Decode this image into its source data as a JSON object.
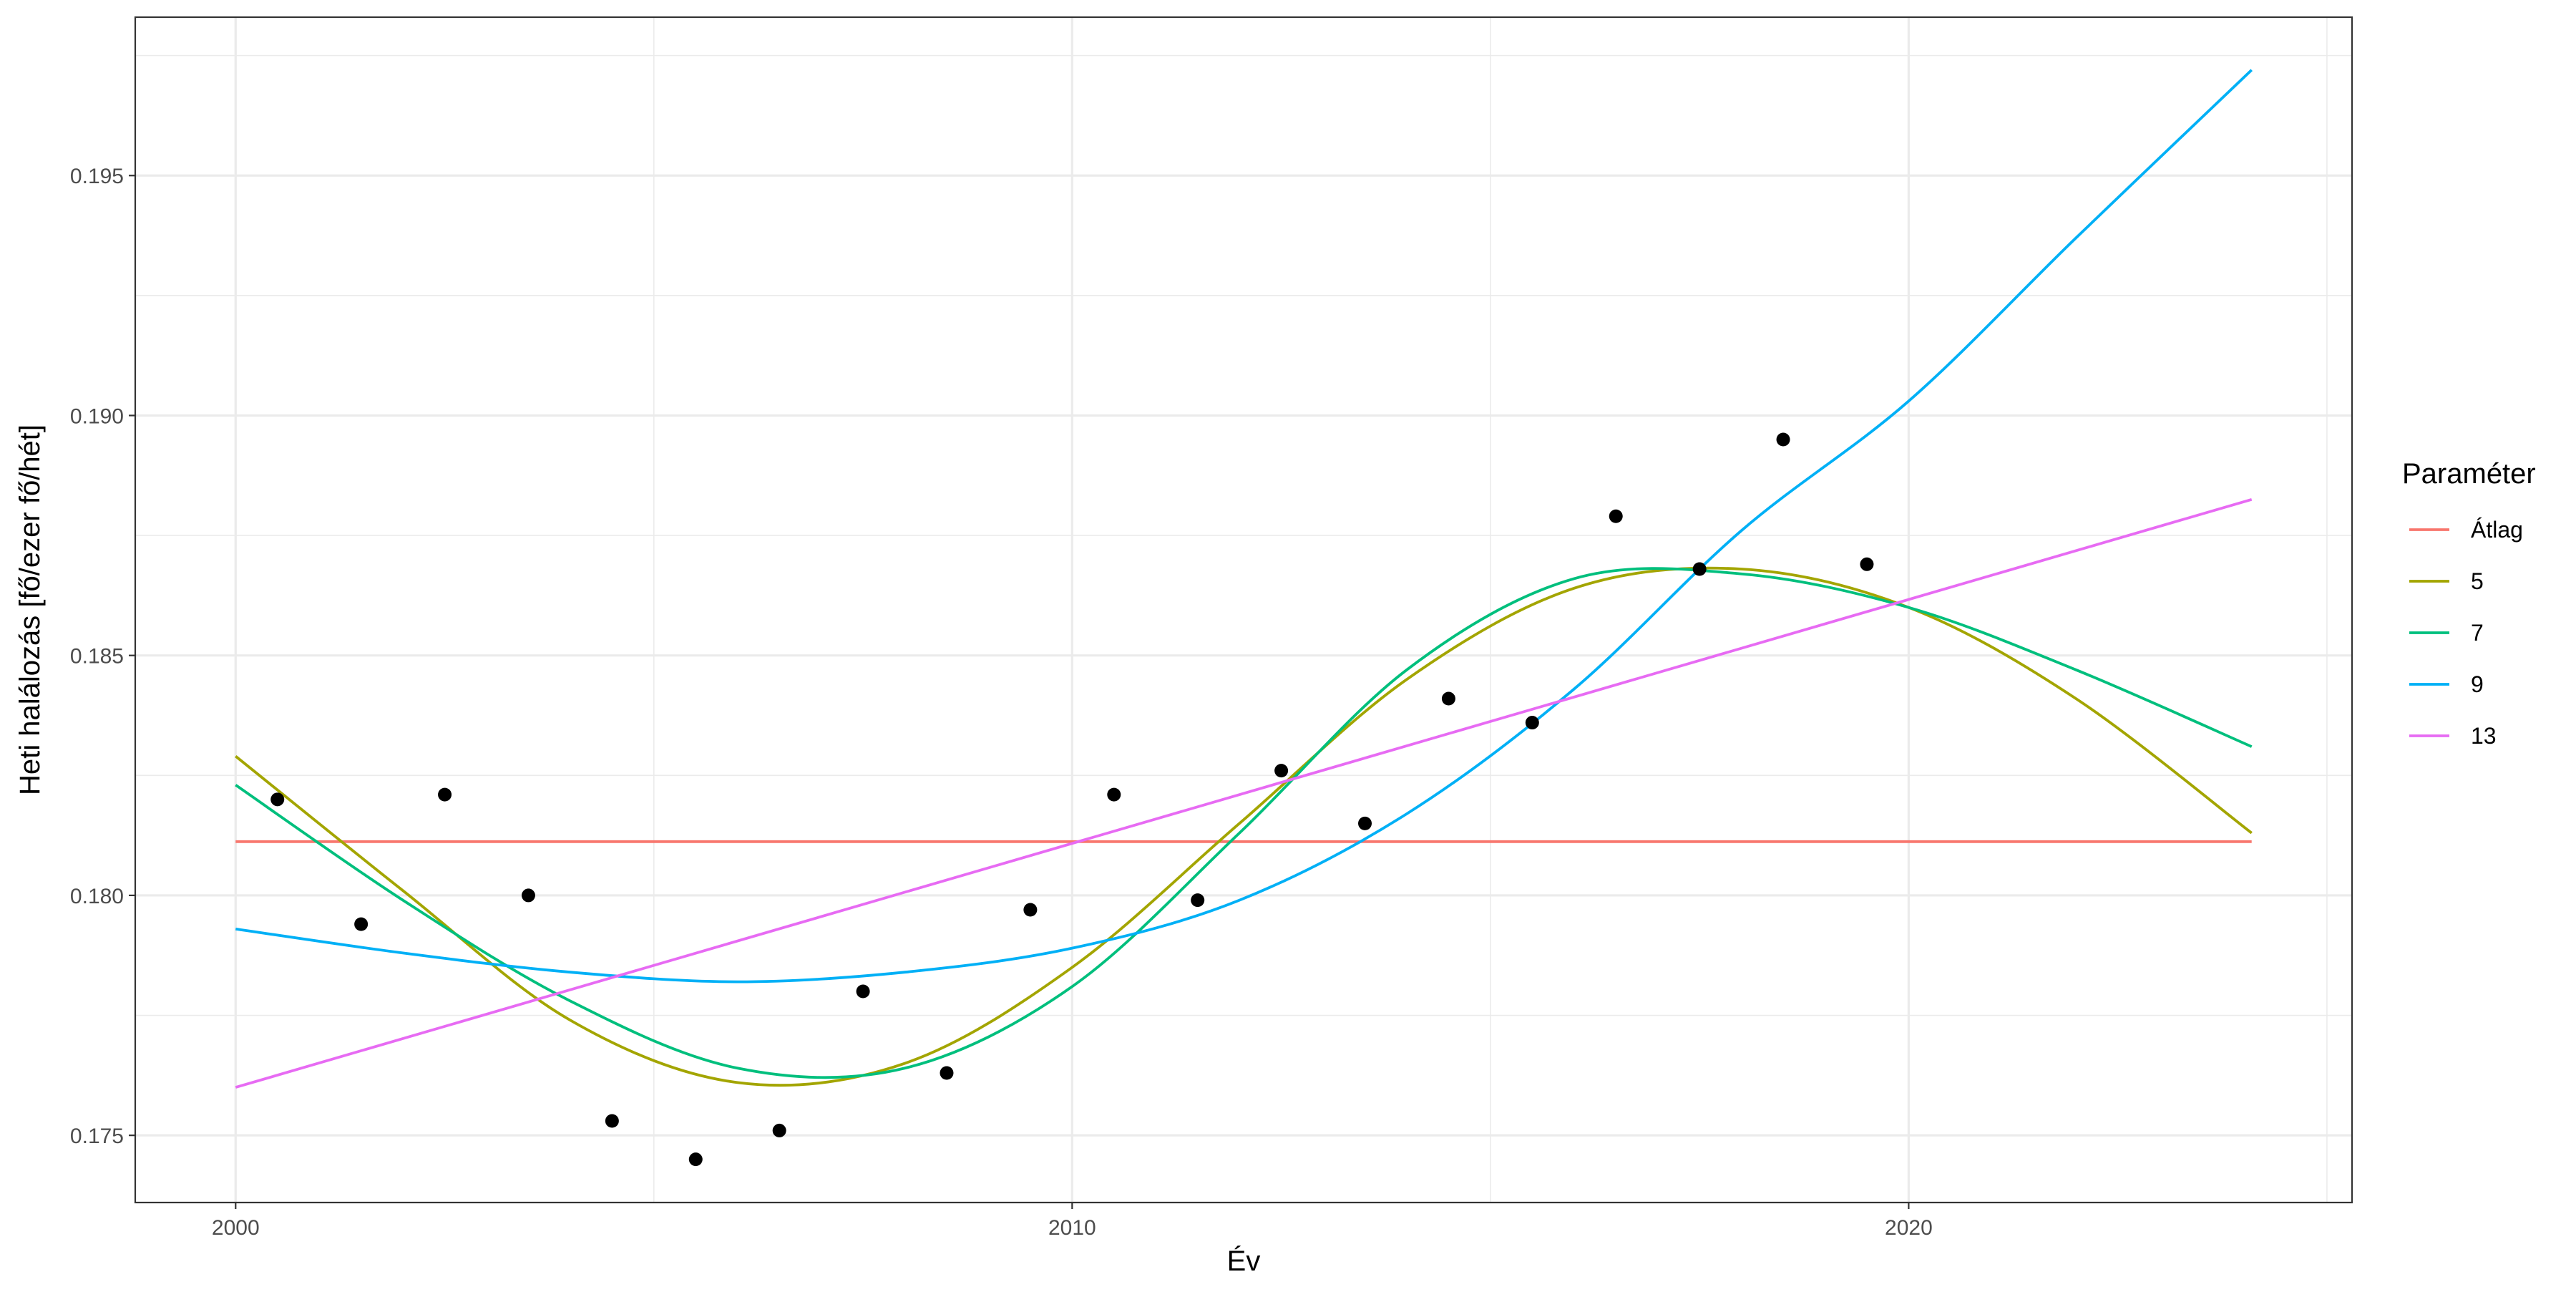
{
  "chart_data": {
    "type": "line",
    "title": "",
    "xlabel": "Év",
    "ylabel": "Heti halálozás [fő/ezer fő/hét]",
    "xlim": [
      1998.8,
      2025.3
    ],
    "ylim": [
      0.1736,
      0.1983
    ],
    "x_major_ticks": [
      2000,
      2010,
      2020
    ],
    "x_tick_labels": [
      "2000",
      "2010",
      "2020"
    ],
    "x_minor_ticks": [
      2005,
      2015,
      2025
    ],
    "y_major_ticks": [
      0.175,
      0.18,
      0.185,
      0.19,
      0.195
    ],
    "y_tick_labels": [
      "0.175",
      "0.180",
      "0.185",
      "0.190",
      "0.195"
    ],
    "y_minor_ticks": [
      0.1775,
      0.1825,
      0.1875,
      0.1925,
      0.1975
    ],
    "grid": true,
    "legend": {
      "title": "Paraméter",
      "position": "right"
    },
    "points": {
      "x": [
        2000.5,
        2001.5,
        2002.5,
        2003.5,
        2004.5,
        2005.5,
        2006.5,
        2007.5,
        2008.5,
        2009.5,
        2010.5,
        2011.5,
        2012.5,
        2013.5,
        2014.5,
        2015.5,
        2016.5,
        2017.5,
        2018.5,
        2019.5
      ],
      "y": [
        0.182,
        0.1794,
        0.1821,
        0.18,
        0.1753,
        0.1745,
        0.1751,
        0.178,
        0.1763,
        0.1797,
        0.1821,
        0.1799,
        0.1826,
        0.1815,
        0.1841,
        0.1836,
        0.1879,
        0.1868,
        0.1895,
        0.1869
      ],
      "color": "#000000"
    },
    "series": [
      {
        "name": "Átlag",
        "color": "#F8766D",
        "x": [
          2000,
          2024.1
        ],
        "y": [
          0.18112,
          0.18112
        ]
      },
      {
        "name": "5",
        "color": "#A3A500",
        "x": [
          2000,
          2002,
          2004,
          2006,
          2008,
          2010,
          2012,
          2014,
          2016,
          2018,
          2020,
          2022,
          2024.1
        ],
        "y": [
          0.1829,
          0.1801,
          0.1774,
          0.1761,
          0.1765,
          0.1785,
          0.1815,
          0.1845,
          0.1864,
          0.1868,
          0.186,
          0.1841,
          0.1813
        ]
      },
      {
        "name": "7",
        "color": "#00BF7D",
        "x": [
          2000,
          2002,
          2004,
          2006,
          2008,
          2010,
          2012,
          2014,
          2016,
          2018,
          2020,
          2022,
          2024.1
        ],
        "y": [
          0.1823,
          0.1799,
          0.1778,
          0.1764,
          0.1764,
          0.1781,
          0.1813,
          0.1847,
          0.1866,
          0.1867,
          0.186,
          0.1847,
          0.1831
        ]
      },
      {
        "name": "9",
        "color": "#00B0F6",
        "x": [
          2000,
          2002,
          2004,
          2006,
          2008,
          2010,
          2012,
          2014,
          2016,
          2018,
          2020,
          2022,
          2024.1
        ],
        "y": [
          0.1793,
          0.1788,
          0.1784,
          0.1782,
          0.1784,
          0.1789,
          0.1799,
          0.1817,
          0.1843,
          0.1876,
          0.1903,
          0.1937,
          0.1972
        ]
      },
      {
        "name": "13",
        "color": "#E76BF3",
        "x": [
          2000,
          2024.1
        ],
        "y": [
          0.176,
          0.18825
        ]
      }
    ]
  }
}
